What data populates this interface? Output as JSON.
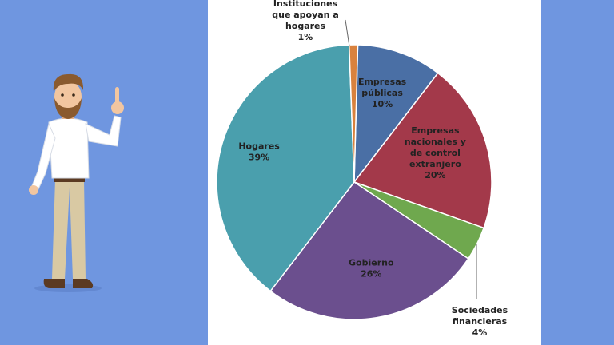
{
  "chart_data": {
    "type": "pie",
    "title": "",
    "slices": [
      {
        "label": [
          "Empresas",
          "públicas"
        ],
        "value": 10,
        "pct_label": "10%",
        "color": "#4a6fa5"
      },
      {
        "label": [
          "Empresas",
          "nacionales y",
          "de control",
          "extranjero"
        ],
        "value": 20,
        "pct_label": "20%",
        "color": "#a3394a"
      },
      {
        "label": [
          "Sociedades",
          "financieras"
        ],
        "value": 4,
        "pct_label": "4%",
        "color": "#6fa84e"
      },
      {
        "label": [
          "Gobierno"
        ],
        "value": 26,
        "pct_label": "26%",
        "color": "#6b4f8e"
      },
      {
        "label": [
          "Hogares"
        ],
        "value": 39,
        "pct_label": "39%",
        "color": "#4a9fad"
      },
      {
        "label": [
          "Instituciones",
          "que apoyan a",
          "hogares"
        ],
        "value": 1,
        "pct_label": "1%",
        "color": "#d9823e"
      }
    ]
  },
  "illustration": {
    "icon": "presenter-man-pointing-up-icon",
    "colors": {
      "shirt": "#ffffff",
      "pants": "#d9c9a3",
      "hair": "#8a5a2e",
      "skin": "#f2c6a0",
      "shoes": "#5b3a22"
    }
  }
}
